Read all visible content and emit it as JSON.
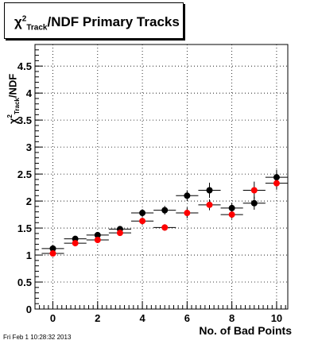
{
  "timestamp": "Fri Feb  1 10:28:32 2013",
  "chart_data": {
    "type": "scatter",
    "title": {
      "chi": "χ",
      "sup": "2",
      "sub": "Track",
      "rest": "/NDF Primary Tracks"
    },
    "ylabel": {
      "chi": "χ",
      "sup": "2",
      "sub": "Track",
      "rest": "/NDF"
    },
    "xlabel": "No. of Bad Points",
    "xlim": [
      -0.8,
      10.5
    ],
    "ylim": [
      0,
      4.9
    ],
    "xticks": [
      0,
      2,
      4,
      6,
      8,
      10
    ],
    "yticks": [
      0,
      0.5,
      1,
      1.5,
      2,
      2.5,
      3,
      3.5,
      4,
      4.5
    ],
    "ytick_labels": [
      "0",
      "0.5",
      "1",
      "1.5",
      "2",
      "2.5",
      "3",
      "3.5",
      "4",
      "4.5"
    ],
    "grid": true,
    "series": [
      {
        "color": "#000000",
        "x": [
          0,
          1,
          2,
          3,
          4,
          5,
          6,
          7,
          8,
          9,
          10
        ],
        "y": [
          1.12,
          1.3,
          1.37,
          1.48,
          1.78,
          1.83,
          2.1,
          2.2,
          1.87,
          1.96,
          2.44
        ],
        "yerr": [
          0.04,
          0.04,
          0.05,
          0.05,
          0.07,
          0.08,
          0.1,
          0.14,
          0.1,
          0.12,
          0.14
        ]
      },
      {
        "color": "#ff0000",
        "x": [
          0,
          1,
          2,
          3,
          4,
          5,
          6,
          7,
          8,
          9,
          10
        ],
        "y": [
          1.03,
          1.22,
          1.28,
          1.41,
          1.63,
          1.51,
          1.78,
          1.93,
          1.75,
          2.2,
          2.33
        ],
        "yerr": [
          0.03,
          0.04,
          0.04,
          0.05,
          0.07,
          0.06,
          0.1,
          0.1,
          0.08,
          0.16,
          0.12
        ]
      }
    ],
    "xerr": 0.5
  }
}
